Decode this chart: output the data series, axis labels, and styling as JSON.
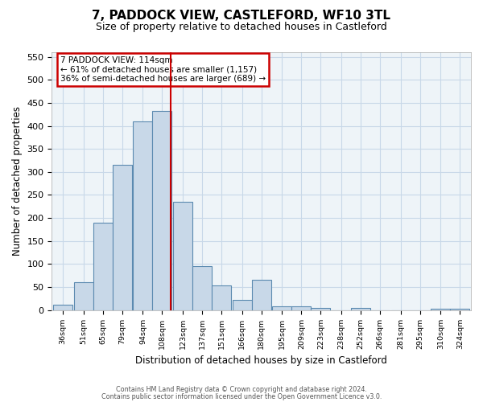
{
  "title": "7, PADDOCK VIEW, CASTLEFORD, WF10 3TL",
  "subtitle": "Size of property relative to detached houses in Castleford",
  "xlabel": "Distribution of detached houses by size in Castleford",
  "ylabel": "Number of detached properties",
  "bar_labels": [
    "36sqm",
    "51sqm",
    "65sqm",
    "79sqm",
    "94sqm",
    "108sqm",
    "123sqm",
    "137sqm",
    "151sqm",
    "166sqm",
    "180sqm",
    "195sqm",
    "209sqm",
    "223sqm",
    "238sqm",
    "252sqm",
    "266sqm",
    "281sqm",
    "295sqm",
    "310sqm",
    "324sqm"
  ],
  "bar_values": [
    12,
    61,
    190,
    315,
    409,
    432,
    235,
    95,
    53,
    22,
    65,
    8,
    8,
    5,
    0,
    4,
    0,
    0,
    0,
    3,
    2
  ],
  "bin_width": 14,
  "bin_centers": [
    36,
    51,
    65,
    79,
    94,
    108,
    123,
    137,
    151,
    166,
    180,
    195,
    209,
    223,
    238,
    252,
    266,
    281,
    295,
    310,
    324
  ],
  "vline_x": 114,
  "vline_color": "#cc0000",
  "bar_facecolor": "#c8d8e8",
  "bar_edgecolor": "#5b8ab0",
  "ylim": [
    0,
    550
  ],
  "yticks": [
    0,
    50,
    100,
    150,
    200,
    250,
    300,
    350,
    400,
    450,
    500,
    550
  ],
  "annotation_title": "7 PADDOCK VIEW: 114sqm",
  "annotation_line1": "← 61% of detached houses are smaller (1,157)",
  "annotation_line2": "36% of semi-detached houses are larger (689) →",
  "annotation_box_color": "#cc0000",
  "grid_color": "#c8d8e8",
  "background_color": "#eef4f8",
  "footer1": "Contains HM Land Registry data © Crown copyright and database right 2024.",
  "footer2": "Contains public sector information licensed under the Open Government Licence v3.0."
}
